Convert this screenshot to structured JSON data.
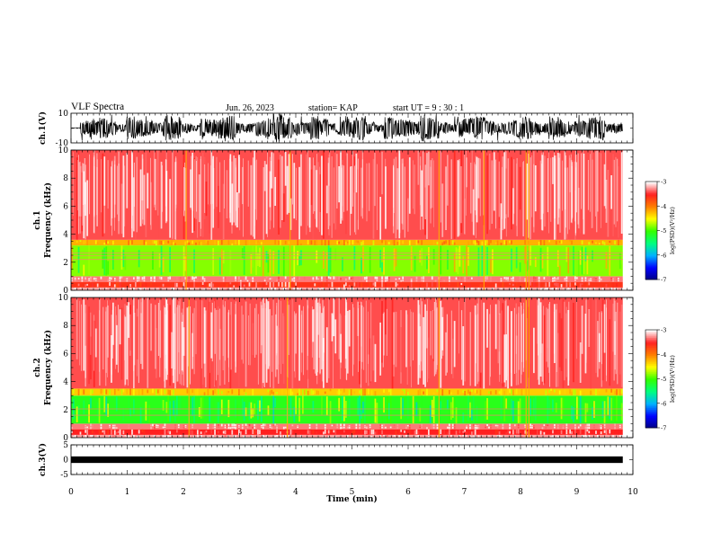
{
  "header": {
    "title": "VLF Spectra",
    "date": "Jun. 26, 2023",
    "station": "station= KAP",
    "start_ut": "start  UT =   9 : 30 : 1"
  },
  "chart_data": [
    {
      "panel": "ch1-waveform",
      "type": "line",
      "ylabel": "ch.1(V)",
      "ytick_labels": [
        "10",
        "-10"
      ],
      "ylim": [
        -10,
        10
      ],
      "xlim": [
        0,
        10
      ],
      "description_values": "dense oscillating waveform, amplitude mostly within ±6 V, occasional spikes near ±9 V",
      "y": [
        0.2,
        -4.1,
        5.3,
        -6.0,
        3.8,
        -2.2,
        6.5,
        -5.1,
        4.4,
        -3.0,
        7.2,
        -6.6,
        2.9,
        -1.8,
        5.9,
        -4.8,
        6.1,
        -7.3,
        3.1,
        -2.7,
        5.0,
        -5.6,
        8.4,
        -6.2,
        4.1,
        -3.5,
        6.8,
        -5.4,
        2.6,
        -4.4,
        5.7,
        -6.9,
        3.4,
        -2.1,
        6.2,
        -5.0,
        4.8,
        -3.9,
        7.5,
        -6.1,
        3.3,
        -2.5,
        5.4,
        -5.8,
        6.6,
        -4.2,
        2.8,
        -3.6,
        5.1,
        -6.4,
        4.0,
        -2.9,
        6.9,
        -5.5,
        3.7,
        -4.6,
        5.8,
        -6.7,
        2.4,
        -3.2
      ]
    },
    {
      "panel": "ch1-spectrogram",
      "type": "heatmap",
      "ylabel_line1": "ch.1",
      "ylabel_line2": "Frequency  (kHz)",
      "yticks": [
        0,
        2,
        4,
        6,
        8,
        10
      ],
      "ylim": [
        0,
        10
      ],
      "xlim": [
        0,
        10
      ],
      "colorbar": {
        "label": "log(PSD)(V²/Hz)",
        "ticks": [
          -3,
          -4,
          -5,
          -6,
          -7
        ],
        "range": [
          -7,
          -3
        ]
      },
      "band_levels_log_psd": [
        {
          "freq_khz": [
            0.0,
            0.2
          ],
          "level": -3.2
        },
        {
          "freq_khz": [
            0.2,
            0.6
          ],
          "level": -3.6
        },
        {
          "freq_khz": [
            0.6,
            1.0
          ],
          "level": -3.3
        },
        {
          "freq_khz": [
            1.0,
            3.2
          ],
          "level": -4.8
        },
        {
          "freq_khz": [
            3.2,
            3.6
          ],
          "level": -4.2
        },
        {
          "freq_khz": [
            3.6,
            10.0
          ],
          "level": -3.4
        }
      ],
      "vertical_spike_times_min": [
        2.05,
        3.9,
        6.55,
        7.35,
        8.1,
        8.15
      ],
      "horizontal_lines_khz": [
        0.75,
        2.2,
        2.45,
        2.65
      ]
    },
    {
      "panel": "ch2-spectrogram",
      "type": "heatmap",
      "ylabel_line1": "ch.2",
      "ylabel_line2": "Frequency  (kHz)",
      "yticks": [
        0,
        2,
        4,
        6,
        8,
        10
      ],
      "ylim": [
        0,
        10
      ],
      "xlim": [
        0,
        10
      ],
      "colorbar": {
        "label": "log(PSD)(V²/Hz)",
        "ticks": [
          -3,
          -4,
          -5,
          -6,
          -7
        ],
        "range": [
          -7,
          -3
        ]
      },
      "band_levels_log_psd": [
        {
          "freq_khz": [
            0.0,
            0.2
          ],
          "level": -3.2
        },
        {
          "freq_khz": [
            0.2,
            0.6
          ],
          "level": -3.5
        },
        {
          "freq_khz": [
            0.6,
            1.0
          ],
          "level": -3.3
        },
        {
          "freq_khz": [
            1.0,
            3.0
          ],
          "level": -5.1
        },
        {
          "freq_khz": [
            3.0,
            3.5
          ],
          "level": -4.3
        },
        {
          "freq_khz": [
            3.5,
            10.0
          ],
          "level": -3.4
        }
      ],
      "vertical_spike_times_min": [
        2.1,
        3.85,
        6.55,
        8.1,
        8.15
      ],
      "horizontal_lines_khz": [
        0.8,
        1.6,
        2.05
      ]
    },
    {
      "panel": "ch3-waveform",
      "type": "line",
      "ylabel": "ch.3(V)",
      "yticks": [
        5,
        0,
        -5
      ],
      "ylim": [
        -5,
        5
      ],
      "xlim": [
        0,
        10
      ],
      "level_band_v": [
        -0.35,
        0.35
      ]
    }
  ],
  "xaxis": {
    "label": "Time  (min)",
    "ticks": [
      0,
      1,
      2,
      3,
      4,
      5,
      6,
      7,
      8,
      9,
      10
    ],
    "data_end_min": 9.82
  },
  "colors": {
    "cmap": [
      "#000080",
      "#0000ff",
      "#00b0ff",
      "#00ff80",
      "#33ff00",
      "#ffff00",
      "#ff7f00",
      "#ff2020",
      "#ffffff"
    ]
  }
}
